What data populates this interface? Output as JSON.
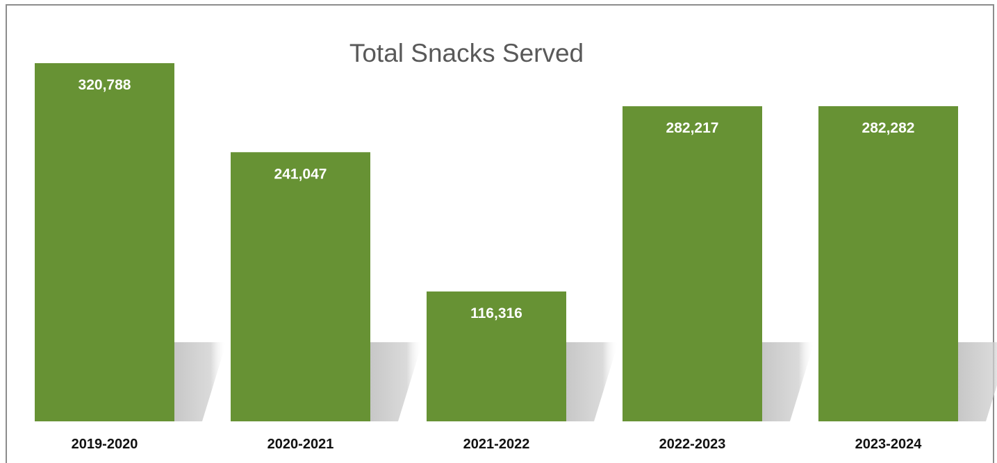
{
  "chart_data": {
    "type": "bar",
    "title": "Total Snacks Served",
    "categories": [
      "2019-2020",
      "2020-2021",
      "2021-2022",
      "2022-2023",
      "2023-2024"
    ],
    "values": [
      320788,
      241047,
      116316,
      282217,
      282282
    ],
    "value_labels": [
      "320,788",
      "241,047",
      "116,316",
      "282,217",
      "282,282"
    ],
    "xlabel": "",
    "ylabel": "",
    "ylim": [
      0,
      320788
    ],
    "grid": false,
    "legend": "none",
    "axis_visible": false
  },
  "colors": {
    "bar": "#679234",
    "bar_label": "#ffffff",
    "tick_label": "#111111",
    "title": "#595959",
    "shadow": "#c8c8c8"
  }
}
